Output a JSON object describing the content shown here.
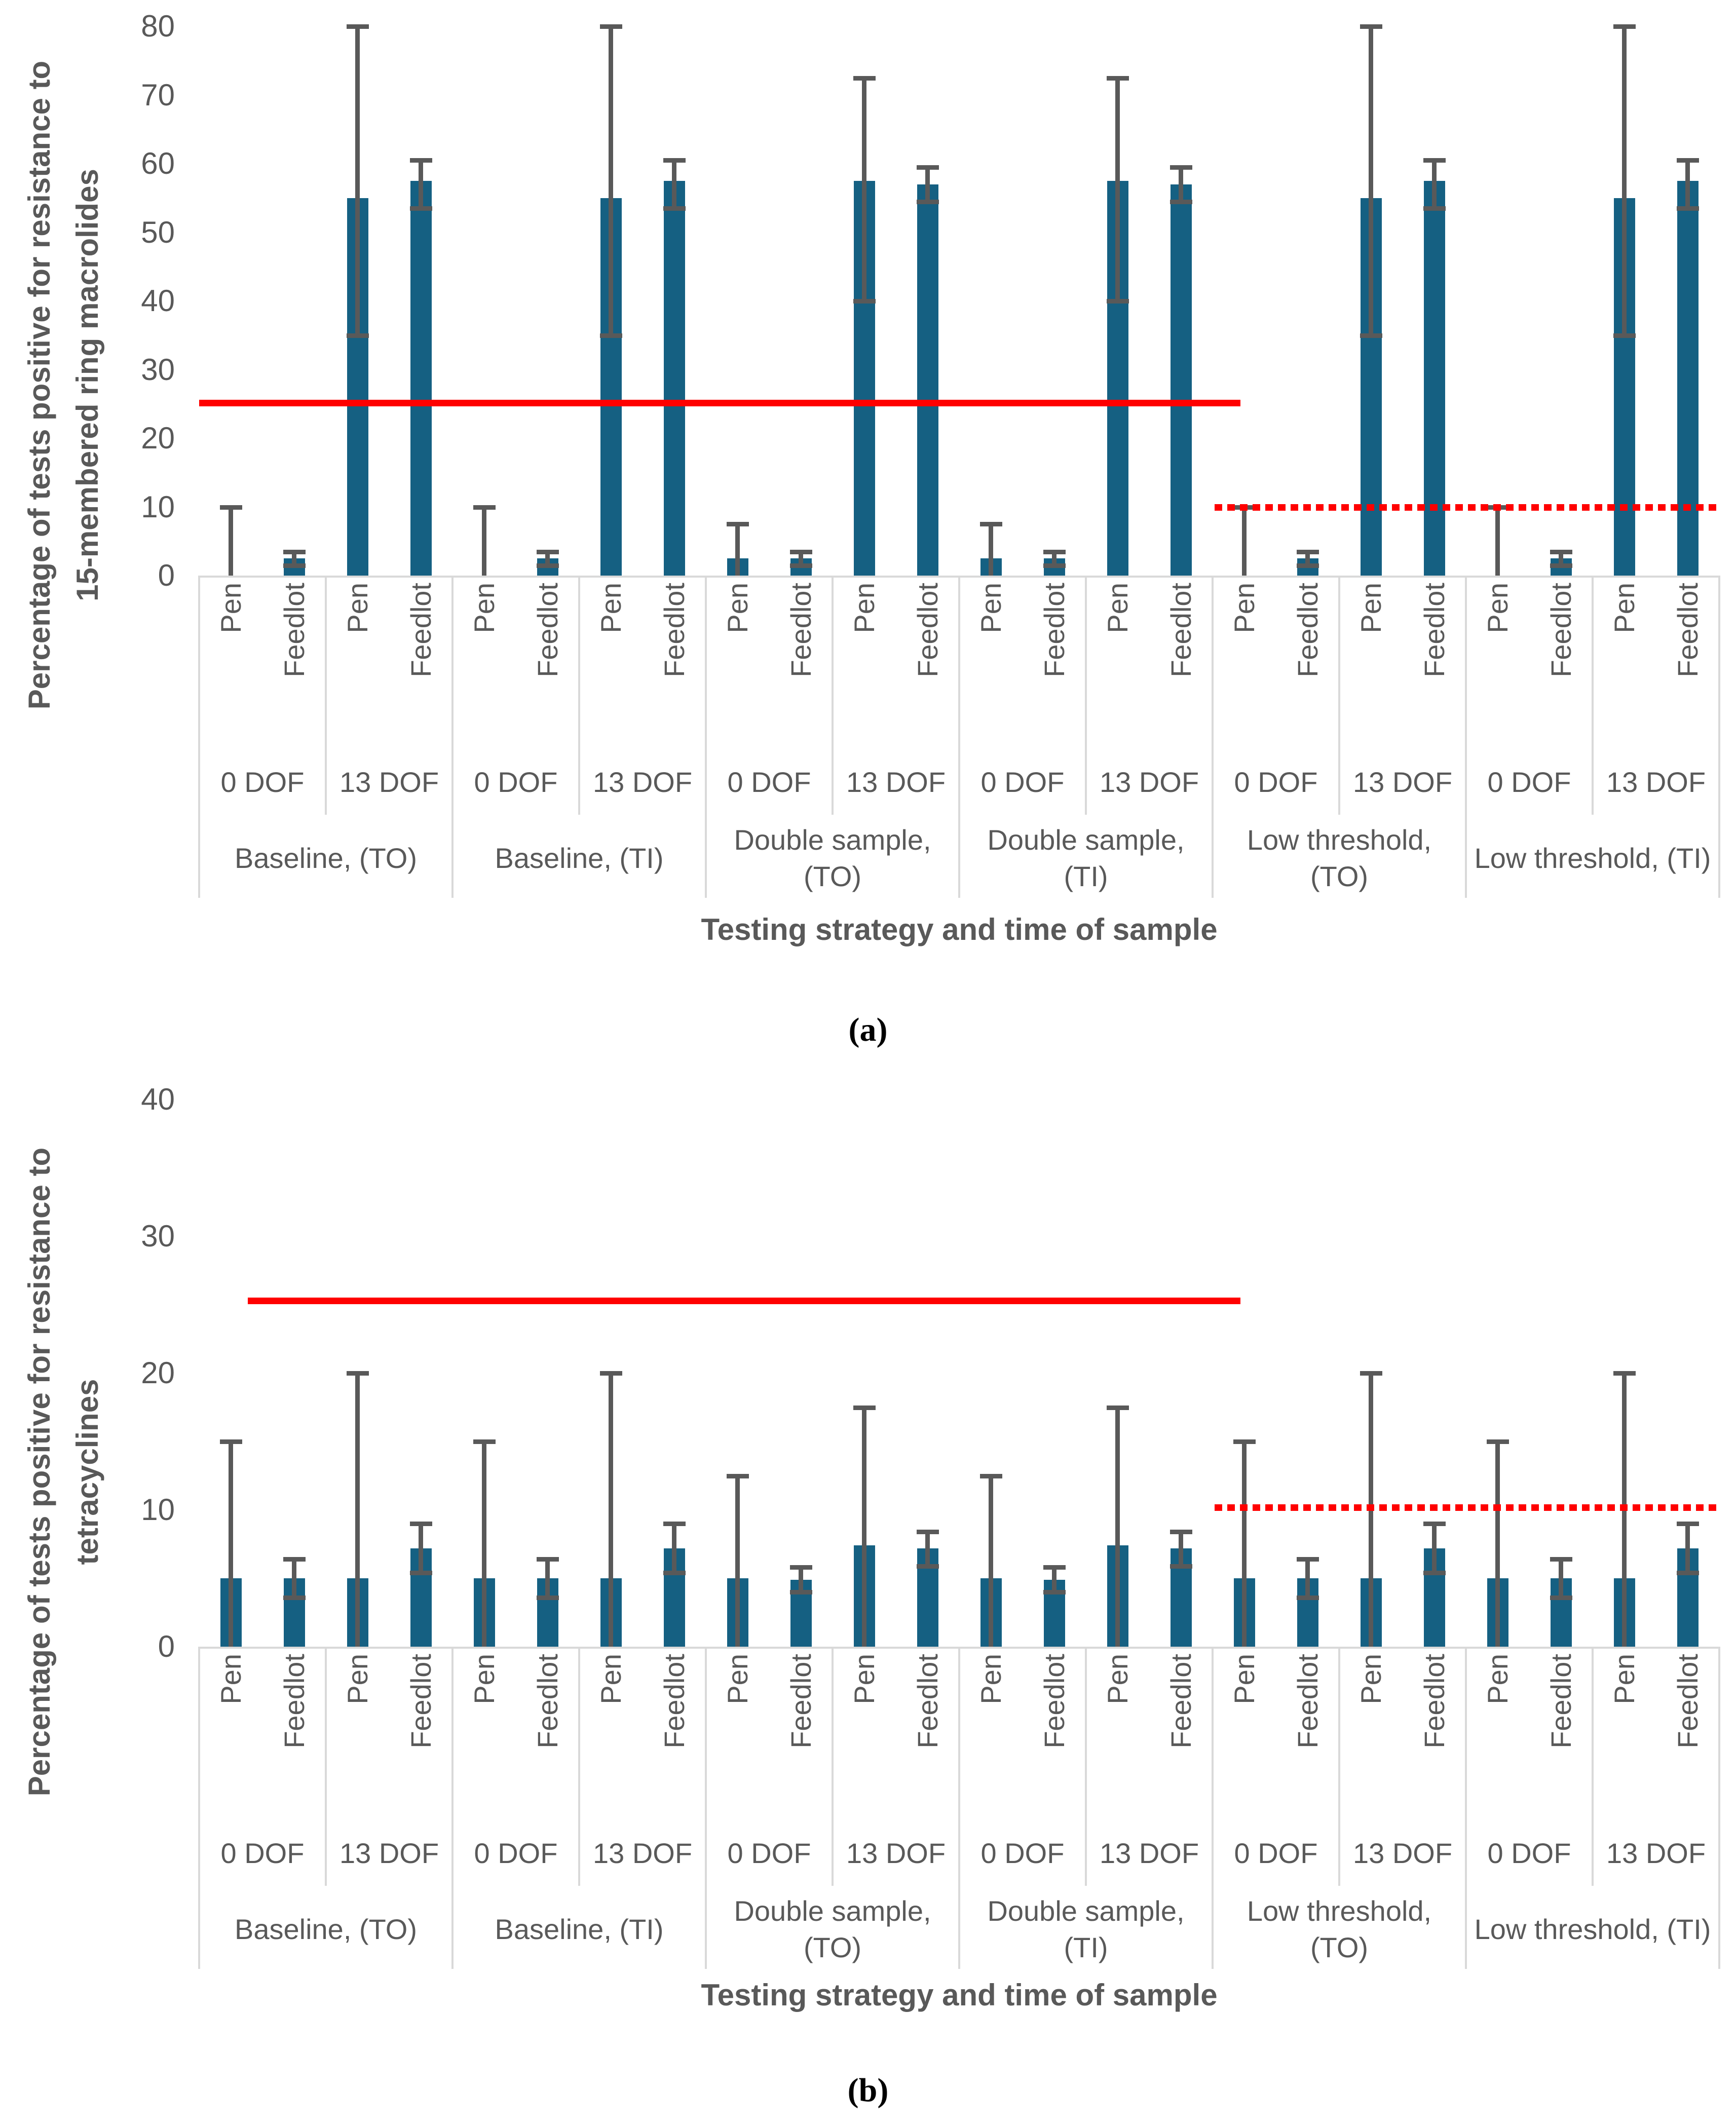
{
  "colors": {
    "bar": "#156082",
    "error_bar": "#595959",
    "reference_line": "#FF0000",
    "axis_box": "#D9D9D9",
    "text": "#595959",
    "caption_text": "#000000"
  },
  "chart_data": [
    {
      "type": "bar",
      "panel": "a",
      "caption": "(a)",
      "y_title": {
        "line1": "Percentage of tests positive for resistance to",
        "line2": "15-membered ring macrolides"
      },
      "x_title": "Testing strategy and time of sample",
      "ylim": [
        0,
        80
      ],
      "yticks": [
        80,
        70,
        60,
        50,
        40,
        30,
        20,
        10,
        0
      ],
      "series_labels": [
        "Pen",
        "Feedlot"
      ],
      "legend": "none",
      "grid": "off",
      "ref_lines": {
        "solid": {
          "value": 25.2,
          "style": "solid",
          "color": "#FF0000",
          "span_frac": [
            0,
            0.685
          ]
        },
        "dotted": {
          "value": 10,
          "style": "dotted",
          "color": "#FF0000",
          "span_frac": [
            0.668,
            1
          ]
        }
      },
      "groups": [
        {
          "label": "Baseline, (TO)",
          "cells": [
            {
              "label": "0 DOF",
              "bars": [
                {
                  "series": "Pen",
                  "value": 0,
                  "err_low": 0,
                  "err_high": 10
                },
                {
                  "series": "Feedlot",
                  "value": 2.5,
                  "err_low": 1.5,
                  "err_high": 3.5
                }
              ]
            },
            {
              "label": "13 DOF",
              "bars": [
                {
                  "series": "Pen",
                  "value": 55,
                  "err_low": 35,
                  "err_high": 80
                },
                {
                  "series": "Feedlot",
                  "value": 57.5,
                  "err_low": 53.5,
                  "err_high": 60.5
                }
              ]
            }
          ]
        },
        {
          "label": "Baseline, (TI)",
          "cells": [
            {
              "label": "0 DOF",
              "bars": [
                {
                  "series": "Pen",
                  "value": 0,
                  "err_low": 0,
                  "err_high": 10
                },
                {
                  "series": "Feedlot",
                  "value": 2.5,
                  "err_low": 1.5,
                  "err_high": 3.5
                }
              ]
            },
            {
              "label": "13 DOF",
              "bars": [
                {
                  "series": "Pen",
                  "value": 55,
                  "err_low": 35,
                  "err_high": 80
                },
                {
                  "series": "Feedlot",
                  "value": 57.5,
                  "err_low": 53.5,
                  "err_high": 60.5
                }
              ]
            }
          ]
        },
        {
          "label": "Double sample, (TO)",
          "cells": [
            {
              "label": "0 DOF",
              "bars": [
                {
                  "series": "Pen",
                  "value": 2.5,
                  "err_low": 0,
                  "err_high": 7.5
                },
                {
                  "series": "Feedlot",
                  "value": 2.5,
                  "err_low": 1.5,
                  "err_high": 3.5
                }
              ]
            },
            {
              "label": "13 DOF",
              "bars": [
                {
                  "series": "Pen",
                  "value": 57.5,
                  "err_low": 40,
                  "err_high": 72.5
                },
                {
                  "series": "Feedlot",
                  "value": 57,
                  "err_low": 54.5,
                  "err_high": 59.5
                }
              ]
            }
          ]
        },
        {
          "label": "Double sample, (TI)",
          "cells": [
            {
              "label": "0 DOF",
              "bars": [
                {
                  "series": "Pen",
                  "value": 2.5,
                  "err_low": 0,
                  "err_high": 7.5
                },
                {
                  "series": "Feedlot",
                  "value": 2.5,
                  "err_low": 1.5,
                  "err_high": 3.5
                }
              ]
            },
            {
              "label": "13 DOF",
              "bars": [
                {
                  "series": "Pen",
                  "value": 57.5,
                  "err_low": 40,
                  "err_high": 72.5
                },
                {
                  "series": "Feedlot",
                  "value": 57,
                  "err_low": 54.5,
                  "err_high": 59.5
                }
              ]
            }
          ]
        },
        {
          "label": "Low threshold, (TO)",
          "cells": [
            {
              "label": "0 DOF",
              "bars": [
                {
                  "series": "Pen",
                  "value": 0,
                  "err_low": 0,
                  "err_high": 10
                },
                {
                  "series": "Feedlot",
                  "value": 2.5,
                  "err_low": 1.5,
                  "err_high": 3.5
                }
              ]
            },
            {
              "label": "13 DOF",
              "bars": [
                {
                  "series": "Pen",
                  "value": 55,
                  "err_low": 35,
                  "err_high": 80
                },
                {
                  "series": "Feedlot",
                  "value": 57.5,
                  "err_low": 53.5,
                  "err_high": 60.5
                }
              ]
            }
          ]
        },
        {
          "label": "Low threshold, (TI)",
          "cells": [
            {
              "label": "0 DOF",
              "bars": [
                {
                  "series": "Pen",
                  "value": 0,
                  "err_low": 0,
                  "err_high": 10
                },
                {
                  "series": "Feedlot",
                  "value": 2.5,
                  "err_low": 1.5,
                  "err_high": 3.5
                }
              ]
            },
            {
              "label": "13 DOF",
              "bars": [
                {
                  "series": "Pen",
                  "value": 55,
                  "err_low": 35,
                  "err_high": 80
                },
                {
                  "series": "Feedlot",
                  "value": 57.5,
                  "err_low": 53.5,
                  "err_high": 60.5
                }
              ]
            }
          ]
        }
      ]
    },
    {
      "type": "bar",
      "panel": "b",
      "caption": "(b)",
      "y_title": {
        "line1": "Percentage of tests positive for resistance to",
        "line2": "tetracyclines"
      },
      "x_title": "Testing strategy and time of sample",
      "ylim": [
        0,
        40
      ],
      "yticks": [
        40,
        30,
        20,
        10,
        0
      ],
      "series_labels": [
        "Pen",
        "Feedlot"
      ],
      "legend": "none",
      "grid": "off",
      "ref_lines": {
        "solid": {
          "value": 25.3,
          "style": "solid",
          "color": "#FF0000",
          "span_frac": [
            0.032,
            0.685
          ]
        },
        "dotted": {
          "value": 10.2,
          "style": "dotted",
          "color": "#FF0000",
          "span_frac": [
            0.668,
            1
          ]
        }
      },
      "groups": [
        {
          "label": "Baseline, (TO)",
          "cells": [
            {
              "label": "0 DOF",
              "bars": [
                {
                  "series": "Pen",
                  "value": 5,
                  "err_low": 0,
                  "err_high": 15
                },
                {
                  "series": "Feedlot",
                  "value": 5,
                  "err_low": 3.6,
                  "err_high": 6.4
                }
              ]
            },
            {
              "label": "13 DOF",
              "bars": [
                {
                  "series": "Pen",
                  "value": 5,
                  "err_low": 0,
                  "err_high": 20
                },
                {
                  "series": "Feedlot",
                  "value": 7.2,
                  "err_low": 5.4,
                  "err_high": 9
                }
              ]
            }
          ]
        },
        {
          "label": "Baseline, (TI)",
          "cells": [
            {
              "label": "0 DOF",
              "bars": [
                {
                  "series": "Pen",
                  "value": 5,
                  "err_low": 0,
                  "err_high": 15
                },
                {
                  "series": "Feedlot",
                  "value": 5,
                  "err_low": 3.6,
                  "err_high": 6.4
                }
              ]
            },
            {
              "label": "13 DOF",
              "bars": [
                {
                  "series": "Pen",
                  "value": 5,
                  "err_low": 0,
                  "err_high": 20
                },
                {
                  "series": "Feedlot",
                  "value": 7.2,
                  "err_low": 5.4,
                  "err_high": 9
                }
              ]
            }
          ]
        },
        {
          "label": "Double sample, (TO)",
          "cells": [
            {
              "label": "0 DOF",
              "bars": [
                {
                  "series": "Pen",
                  "value": 5,
                  "err_low": 0,
                  "err_high": 12.5
                },
                {
                  "series": "Feedlot",
                  "value": 4.9,
                  "err_low": 4,
                  "err_high": 5.8
                }
              ]
            },
            {
              "label": "13 DOF",
              "bars": [
                {
                  "series": "Pen",
                  "value": 7.4,
                  "err_low": 0,
                  "err_high": 17.5
                },
                {
                  "series": "Feedlot",
                  "value": 7.2,
                  "err_low": 5.9,
                  "err_high": 8.4
                }
              ]
            }
          ]
        },
        {
          "label": "Double sample, (TI)",
          "cells": [
            {
              "label": "0 DOF",
              "bars": [
                {
                  "series": "Pen",
                  "value": 5,
                  "err_low": 0,
                  "err_high": 12.5
                },
                {
                  "series": "Feedlot",
                  "value": 4.9,
                  "err_low": 4,
                  "err_high": 5.8
                }
              ]
            },
            {
              "label": "13 DOF",
              "bars": [
                {
                  "series": "Pen",
                  "value": 7.4,
                  "err_low": 0,
                  "err_high": 17.5
                },
                {
                  "series": "Feedlot",
                  "value": 7.2,
                  "err_low": 5.9,
                  "err_high": 8.4
                }
              ]
            }
          ]
        },
        {
          "label": "Low threshold, (TO)",
          "cells": [
            {
              "label": "0 DOF",
              "bars": [
                {
                  "series": "Pen",
                  "value": 5,
                  "err_low": 0,
                  "err_high": 15
                },
                {
                  "series": "Feedlot",
                  "value": 5,
                  "err_low": 3.6,
                  "err_high": 6.4
                }
              ]
            },
            {
              "label": "13 DOF",
              "bars": [
                {
                  "series": "Pen",
                  "value": 5,
                  "err_low": 0,
                  "err_high": 20
                },
                {
                  "series": "Feedlot",
                  "value": 7.2,
                  "err_low": 5.4,
                  "err_high": 9
                }
              ]
            }
          ]
        },
        {
          "label": "Low threshold, (TI)",
          "cells": [
            {
              "label": "0 DOF",
              "bars": [
                {
                  "series": "Pen",
                  "value": 5,
                  "err_low": 0,
                  "err_high": 15
                },
                {
                  "series": "Feedlot",
                  "value": 5,
                  "err_low": 3.6,
                  "err_high": 6.4
                }
              ]
            },
            {
              "label": "13 DOF",
              "bars": [
                {
                  "series": "Pen",
                  "value": 5,
                  "err_low": 0,
                  "err_high": 20
                },
                {
                  "series": "Feedlot",
                  "value": 7.2,
                  "err_low": 5.4,
                  "err_high": 9
                }
              ]
            }
          ]
        }
      ]
    }
  ]
}
